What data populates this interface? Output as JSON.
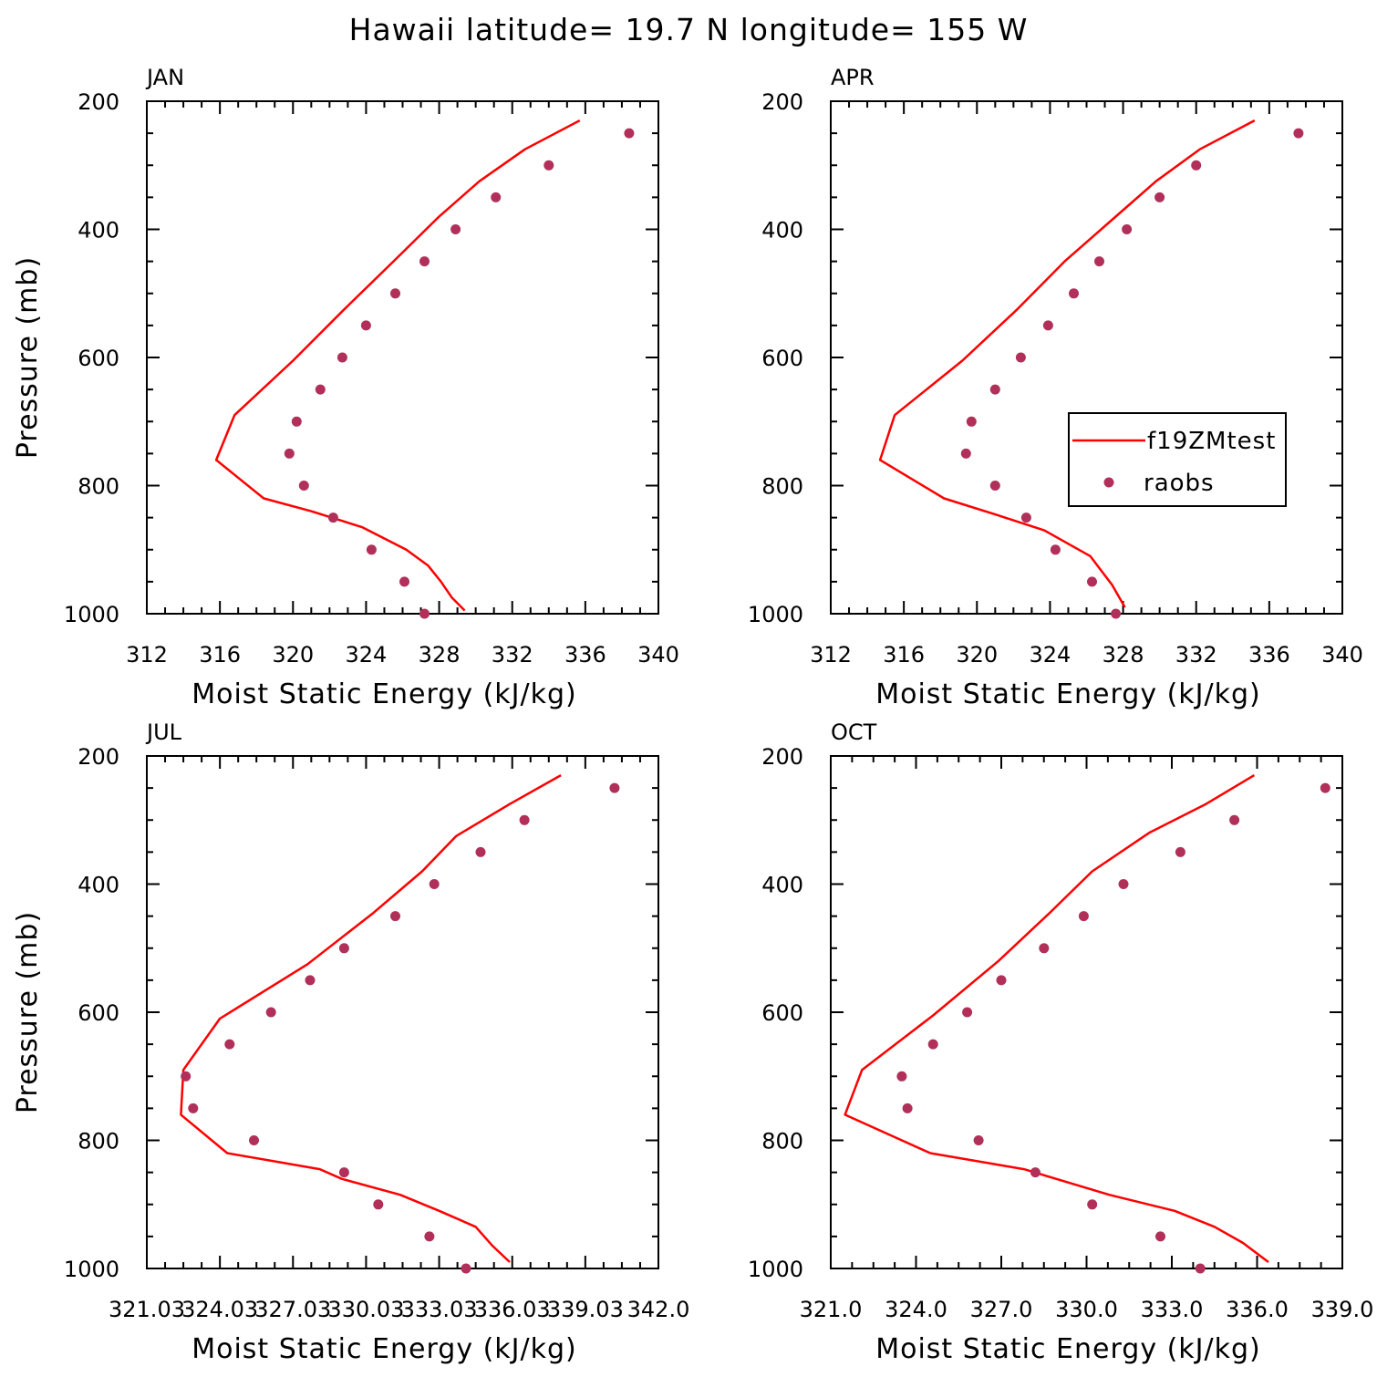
{
  "figure": {
    "title": "Hawaii  latitude= 19.7 N longitude= 155 W",
    "line_color": "#ff0000",
    "dot_color": "#b0305a"
  },
  "chart_data": [
    {
      "type": "line",
      "panel": "JAN",
      "xlabel": "Moist Static Energy (kJ/kg)",
      "ylabel": "Pressure (mb)",
      "xlim": [
        312,
        340
      ],
      "ylim": [
        1000,
        200
      ],
      "xticks": [
        "312",
        "316",
        "320",
        "324",
        "328",
        "332",
        "336",
        "340"
      ],
      "yticks": [
        "200",
        "400",
        "600",
        "800",
        "1000"
      ],
      "series": [
        {
          "name": "f19ZMtest",
          "kind": "line",
          "x": [
            335.7,
            332.7,
            330.2,
            328.0,
            325.5,
            322.8,
            320.0,
            316.8,
            315.8,
            318.4,
            321.0,
            323.8,
            326.2,
            327.4,
            328.1,
            328.7,
            329.4
          ],
          "y": [
            230,
            275,
            325,
            380,
            450,
            525,
            605,
            690,
            760,
            820,
            840,
            865,
            900,
            925,
            950,
            975,
            995
          ]
        },
        {
          "name": "raobs",
          "kind": "scatter",
          "x": [
            338.4,
            334.0,
            331.1,
            328.9,
            327.2,
            325.6,
            324.0,
            322.7,
            321.5,
            320.2,
            319.8,
            320.6,
            322.2,
            324.3,
            326.1,
            327.2
          ],
          "y": [
            250,
            300,
            350,
            400,
            450,
            500,
            550,
            600,
            650,
            700,
            750,
            800,
            850,
            900,
            950,
            1000
          ]
        }
      ]
    },
    {
      "type": "line",
      "panel": "APR",
      "xlabel": "Moist Static Energy (kJ/kg)",
      "ylabel": "",
      "xlim": [
        312,
        340
      ],
      "ylim": [
        1000,
        200
      ],
      "xticks": [
        "312",
        "316",
        "320",
        "324",
        "328",
        "332",
        "336",
        "340"
      ],
      "yticks": [
        "200",
        "400",
        "600",
        "800",
        "1000"
      ],
      "legend": {
        "position": "right-middle",
        "entries": [
          "f19ZMtest",
          "raobs"
        ]
      },
      "series": [
        {
          "name": "f19ZMtest",
          "kind": "line",
          "x": [
            335.2,
            332.2,
            329.8,
            327.4,
            324.8,
            322.2,
            319.2,
            315.5,
            314.7,
            318.2,
            321.0,
            323.7,
            326.2,
            327.4,
            328.1
          ],
          "y": [
            230,
            275,
            325,
            385,
            450,
            525,
            605,
            690,
            760,
            820,
            845,
            870,
            910,
            955,
            990
          ]
        },
        {
          "name": "raobs",
          "kind": "scatter",
          "x": [
            337.6,
            332.0,
            330.0,
            328.2,
            326.7,
            325.3,
            323.9,
            322.4,
            321.0,
            319.7,
            319.4,
            321.0,
            322.7,
            324.3,
            326.3,
            327.6
          ],
          "y": [
            250,
            300,
            350,
            400,
            450,
            500,
            550,
            600,
            650,
            700,
            750,
            800,
            850,
            900,
            950,
            1000
          ]
        }
      ]
    },
    {
      "type": "line",
      "panel": "JUL",
      "xlabel": "Moist Static Energy (kJ/kg)",
      "ylabel": "Pressure (mb)",
      "xlim": [
        321.0,
        342.0
      ],
      "ylim": [
        1000,
        200
      ],
      "xticks": [
        "321.03",
        "324.03",
        "327.03",
        "330.03",
        "333.03",
        "336.03",
        "339.03",
        "342.0"
      ],
      "yticks": [
        "200",
        "400",
        "600",
        "800",
        "1000"
      ],
      "series": [
        {
          "name": "f19ZMtest",
          "kind": "line",
          "x": [
            338.0,
            335.9,
            333.7,
            332.3,
            330.3,
            327.6,
            324.0,
            322.5,
            322.4,
            324.3,
            328.1,
            329.0,
            331.4,
            333.0,
            334.5,
            335.2,
            335.9
          ],
          "y": [
            230,
            275,
            325,
            380,
            445,
            525,
            610,
            690,
            760,
            820,
            845,
            860,
            885,
            910,
            935,
            965,
            990
          ]
        },
        {
          "name": "raobs",
          "kind": "scatter",
          "x": [
            340.2,
            336.5,
            334.7,
            332.8,
            331.2,
            329.1,
            327.7,
            326.1,
            324.4,
            322.6,
            322.9,
            325.4,
            329.1,
            330.5,
            332.6,
            334.1
          ],
          "y": [
            250,
            300,
            350,
            400,
            450,
            500,
            550,
            600,
            650,
            700,
            750,
            800,
            850,
            900,
            950,
            1000
          ]
        }
      ]
    },
    {
      "type": "line",
      "panel": "OCT",
      "xlabel": "Moist Static Energy (kJ/kg)",
      "ylabel": "",
      "xlim": [
        321.0,
        339.0
      ],
      "ylim": [
        1000,
        200
      ],
      "xticks": [
        "321.0",
        "324.0",
        "327.0",
        "330.0",
        "333.0",
        "336.0",
        "339.0"
      ],
      "yticks": [
        "200",
        "400",
        "600",
        "800",
        "1000"
      ],
      "series": [
        {
          "name": "f19ZMtest",
          "kind": "line",
          "x": [
            335.9,
            334.2,
            332.2,
            330.2,
            328.7,
            326.9,
            324.6,
            322.1,
            321.5,
            324.5,
            327.8,
            330.8,
            333.1,
            334.5,
            335.5,
            336.4
          ],
          "y": [
            230,
            275,
            320,
            380,
            445,
            520,
            605,
            690,
            760,
            820,
            845,
            885,
            910,
            935,
            960,
            990
          ]
        },
        {
          "name": "raobs",
          "kind": "scatter",
          "x": [
            338.4,
            335.2,
            333.3,
            331.3,
            329.9,
            328.5,
            327.0,
            325.8,
            324.6,
            323.5,
            323.7,
            326.2,
            328.2,
            330.2,
            332.6,
            334.0
          ],
          "y": [
            250,
            300,
            350,
            400,
            450,
            500,
            550,
            600,
            650,
            700,
            750,
            800,
            850,
            900,
            950,
            1000
          ]
        }
      ]
    }
  ]
}
